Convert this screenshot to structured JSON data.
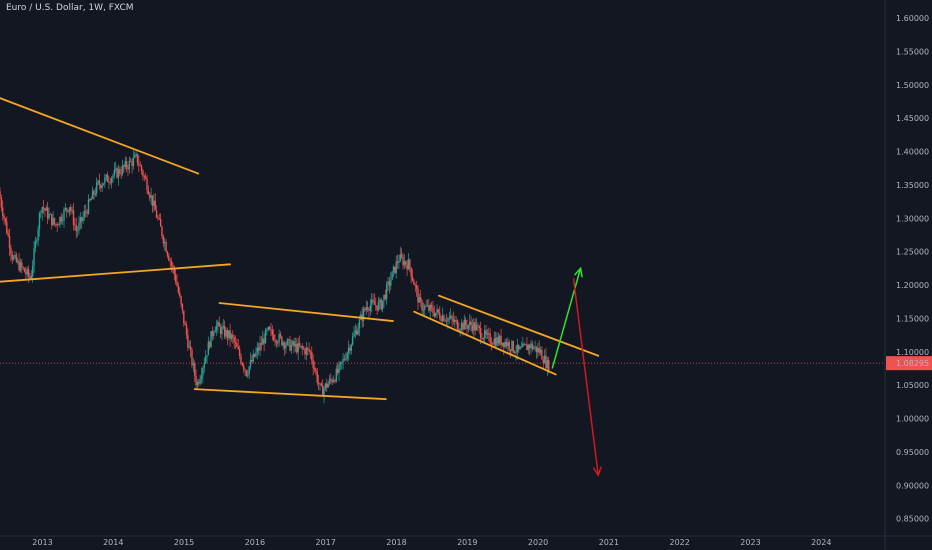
{
  "title": "Euro / U.S. Dollar, 1W, FXCM",
  "colors": {
    "background": "#131722",
    "up": "#26a69a",
    "down": "#ef5350",
    "trend": "#f5a623",
    "arrow_up": "#2ee52e",
    "arrow_down": "#d0191f",
    "price_line": "#ef5350",
    "axis_text": "#b2b5be"
  },
  "chart_data": {
    "type": "candlestick",
    "symbol": "Euro / U.S. Dollar",
    "interval": "1W",
    "source": "FXCM",
    "x_ticks": [
      "2013",
      "2014",
      "2015",
      "2016",
      "2017",
      "2018",
      "2019",
      "2020",
      "2021",
      "2022",
      "2023",
      "2024"
    ],
    "y_ticks": [
      "1.60000",
      "1.55000",
      "1.50000",
      "1.45000",
      "1.40000",
      "1.35000",
      "1.30000",
      "1.25000",
      "1.20000",
      "1.15000",
      "1.10000",
      "1.05000",
      "1.00000",
      "0.95000",
      "0.90000",
      "0.85000"
    ],
    "xlim": [
      2012.4,
      2024.9
    ],
    "ylim": [
      0.83,
      1.615
    ],
    "last_price": "1.08295",
    "price_path": [
      [
        2012.4,
        1.34
      ],
      [
        2012.6,
        1.24
      ],
      [
        2012.85,
        1.21
      ],
      [
        2013.0,
        1.32
      ],
      [
        2013.2,
        1.29
      ],
      [
        2013.4,
        1.32
      ],
      [
        2013.5,
        1.28
      ],
      [
        2013.8,
        1.35
      ],
      [
        2014.1,
        1.37
      ],
      [
        2014.35,
        1.39
      ],
      [
        2014.5,
        1.35
      ],
      [
        2014.7,
        1.28
      ],
      [
        2014.9,
        1.21
      ],
      [
        2015.1,
        1.1
      ],
      [
        2015.2,
        1.05
      ],
      [
        2015.45,
        1.14
      ],
      [
        2015.7,
        1.12
      ],
      [
        2015.9,
        1.07
      ],
      [
        2016.2,
        1.13
      ],
      [
        2016.5,
        1.11
      ],
      [
        2016.8,
        1.1
      ],
      [
        2016.95,
        1.04
      ],
      [
        2017.2,
        1.07
      ],
      [
        2017.4,
        1.12
      ],
      [
        2017.6,
        1.17
      ],
      [
        2017.8,
        1.17
      ],
      [
        2018.05,
        1.24
      ],
      [
        2018.2,
        1.23
      ],
      [
        2018.35,
        1.17
      ],
      [
        2018.55,
        1.16
      ],
      [
        2018.75,
        1.15
      ],
      [
        2018.9,
        1.14
      ],
      [
        2019.1,
        1.14
      ],
      [
        2019.3,
        1.12
      ],
      [
        2019.55,
        1.115
      ],
      [
        2019.75,
        1.1
      ],
      [
        2019.9,
        1.11
      ],
      [
        2020.05,
        1.1
      ],
      [
        2020.15,
        1.08
      ]
    ],
    "trend_lines": [
      {
        "p1": [
          2012.4,
          1.48
        ],
        "p2": [
          2015.2,
          1.367
        ]
      },
      {
        "p1": [
          2012.4,
          1.205
        ],
        "p2": [
          2015.65,
          1.231
        ]
      },
      {
        "p1": [
          2015.5,
          1.173
        ],
        "p2": [
          2017.95,
          1.146
        ]
      },
      {
        "p1": [
          2015.15,
          1.044
        ],
        "p2": [
          2017.85,
          1.029
        ]
      },
      {
        "p1": [
          2018.6,
          1.184
        ],
        "p2": [
          2020.85,
          1.094
        ]
      },
      {
        "p1": [
          2018.25,
          1.16
        ],
        "p2": [
          2020.25,
          1.066
        ]
      }
    ],
    "arrows": [
      {
        "from": [
          2020.2,
          1.075
        ],
        "to": [
          2020.6,
          1.225
        ],
        "direction": "up"
      },
      {
        "from": [
          2020.5,
          1.21
        ],
        "to": [
          2020.85,
          0.915
        ],
        "direction": "down"
      }
    ]
  }
}
